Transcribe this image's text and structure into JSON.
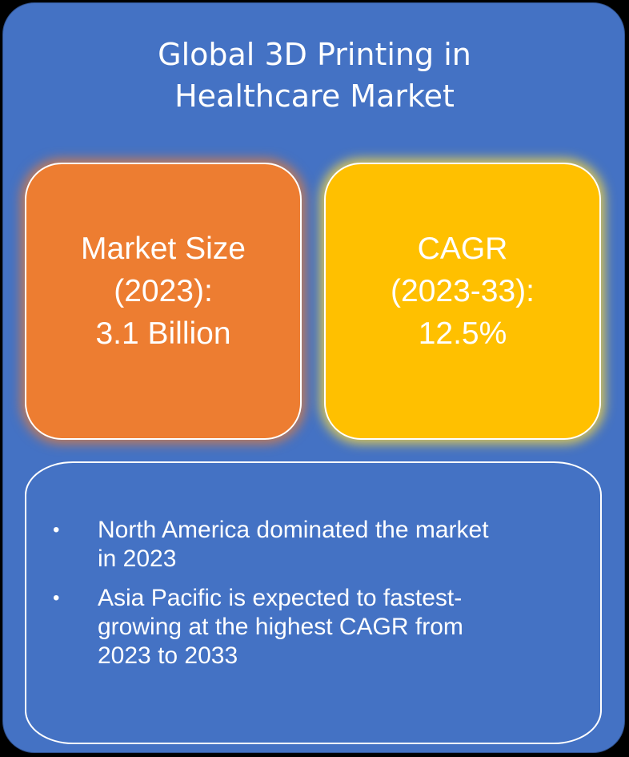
{
  "title": {
    "line1": "Global 3D Printing in",
    "line2": "Healthcare Market"
  },
  "market_size": {
    "line1": "Market Size",
    "line2": "(2023):",
    "line3": "3.1 Billion"
  },
  "cagr": {
    "line1": "CAGR",
    "line2": "(2023-33):",
    "line3": "12.5%"
  },
  "highlights": [
    {
      "line1": "North America dominated the market",
      "line2": "in 2023",
      "line3": ""
    },
    {
      "line1": "Asia Pacific is expected to fastest-",
      "line2": "growing at the highest CAGR from",
      "line3": "2023 to 2033"
    }
  ],
  "bullet_glyph": "•",
  "colors": {
    "background": "#4472c4",
    "market_size_box": "#ed7d31",
    "cagr_box": "#ffc000",
    "text": "#ffffff"
  }
}
